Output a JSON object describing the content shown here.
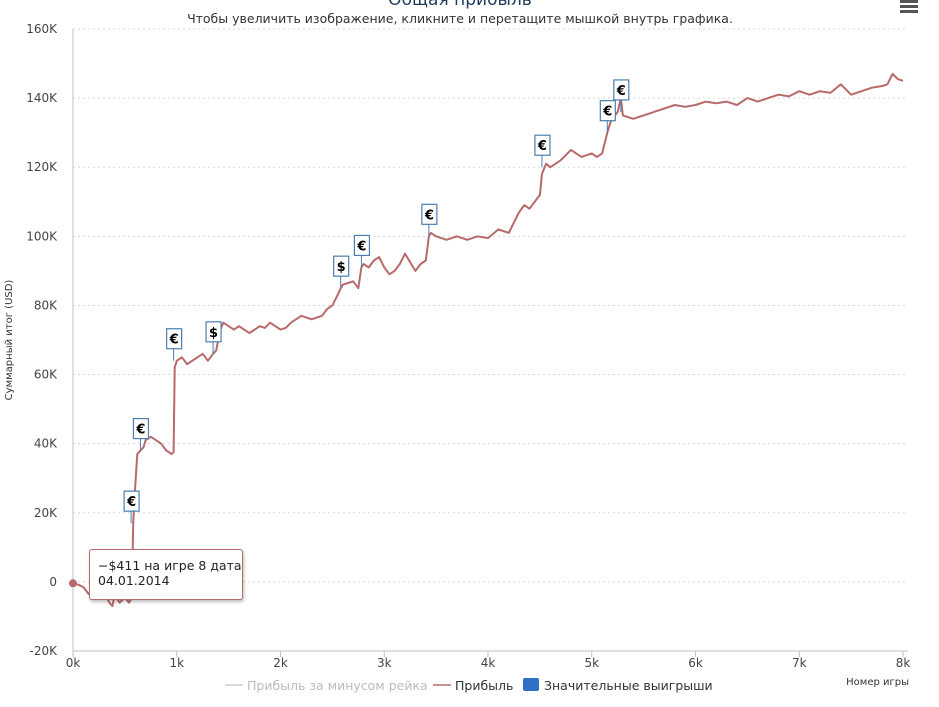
{
  "chart_data": {
    "type": "line",
    "title": "Общая прибыль",
    "subtitle": "Чтобы увеличить изображение, кликните и перетащите мышкой внутрь графика.",
    "xlabel": "Номер игры",
    "ylabel": "Суммарный итог (USD)",
    "xlim": [
      0,
      8000
    ],
    "ylim": [
      -20000,
      160000
    ],
    "x_ticks": [
      "0k",
      "1k",
      "2k",
      "3k",
      "4k",
      "5k",
      "6k",
      "7k",
      "8k"
    ],
    "y_ticks": [
      "-20K",
      "0",
      "20K",
      "40K",
      "60K",
      "80K",
      "100K",
      "120K",
      "140K",
      "160K"
    ],
    "grid": true,
    "legend_position": "bottom",
    "series": [
      {
        "name": "Прибыль за минусом рейка",
        "color": "#cccccc",
        "visible": false,
        "x": [],
        "y": []
      },
      {
        "name": "Прибыль",
        "color": "#b86a6a",
        "x": [
          0,
          50,
          100,
          150,
          200,
          250,
          300,
          350,
          380,
          400,
          450,
          500,
          540,
          560,
          570,
          580,
          600,
          620,
          650,
          680,
          700,
          750,
          800,
          850,
          900,
          950,
          970,
          980,
          1000,
          1050,
          1100,
          1150,
          1200,
          1250,
          1300,
          1350,
          1380,
          1420,
          1450,
          1500,
          1550,
          1600,
          1700,
          1800,
          1850,
          1900,
          2000,
          2050,
          2100,
          2200,
          2300,
          2400,
          2450,
          2500,
          2550,
          2580,
          2600,
          2650,
          2700,
          2750,
          2780,
          2800,
          2850,
          2900,
          2950,
          3000,
          3050,
          3100,
          3150,
          3200,
          3300,
          3350,
          3400,
          3430,
          3450,
          3500,
          3600,
          3700,
          3800,
          3900,
          4000,
          4100,
          4200,
          4250,
          4300,
          4350,
          4400,
          4450,
          4500,
          4520,
          4560,
          4600,
          4700,
          4800,
          4850,
          4900,
          5000,
          5050,
          5100,
          5150,
          5180,
          5200,
          5250,
          5280,
          5300,
          5400,
          5500,
          5600,
          5700,
          5800,
          5900,
          6000,
          6100,
          6200,
          6300,
          6400,
          6500,
          6600,
          6700,
          6800,
          6900,
          7000,
          7100,
          7200,
          7300,
          7400,
          7500,
          7600,
          7700,
          7800,
          7850,
          7900,
          7950,
          8000
        ],
        "y": [
          -411,
          -800,
          -1500,
          -3500,
          -2500,
          -4000,
          -3000,
          -6000,
          -7000,
          -4000,
          -6000,
          -4500,
          -6000,
          -5000,
          -1000,
          17000,
          28000,
          37000,
          38000,
          39000,
          41000,
          42000,
          41000,
          40000,
          38000,
          37000,
          37500,
          62000,
          64000,
          65000,
          63000,
          64000,
          65000,
          66000,
          64000,
          66000,
          67000,
          73000,
          75000,
          74000,
          73000,
          74000,
          72000,
          74000,
          73500,
          75000,
          73000,
          73500,
          75000,
          77000,
          76000,
          77000,
          79000,
          80000,
          83000,
          85000,
          86000,
          86500,
          87000,
          85000,
          91000,
          92000,
          91000,
          93000,
          94000,
          91000,
          89000,
          90000,
          92000,
          95000,
          90000,
          92000,
          93000,
          100000,
          101000,
          100000,
          99000,
          100000,
          99000,
          100000,
          99500,
          102000,
          101000,
          104000,
          107000,
          109000,
          108000,
          110000,
          112000,
          118000,
          121000,
          120000,
          122000,
          125000,
          124000,
          123000,
          124000,
          123000,
          124000,
          130000,
          133000,
          134000,
          136000,
          140000,
          135000,
          134000,
          135000,
          136000,
          137000,
          138000,
          137500,
          138000,
          139000,
          138500,
          139000,
          138000,
          140000,
          139000,
          140000,
          141000,
          140500,
          142000,
          141000,
          142000,
          141500,
          144000,
          141000,
          142000,
          143000,
          143500,
          144000,
          147000,
          145500,
          145000
        ]
      },
      {
        "name": "Значительные выигрыши",
        "color": "#2f6fc4"
      }
    ],
    "flags": [
      {
        "x": 560,
        "y": 17000,
        "symbol": "€"
      },
      {
        "x": 650,
        "y": 38000,
        "symbol": "€"
      },
      {
        "x": 970,
        "y": 64000,
        "symbol": "€"
      },
      {
        "x": 1350,
        "y": 66000,
        "symbol": "$"
      },
      {
        "x": 2580,
        "y": 85000,
        "symbol": "$"
      },
      {
        "x": 2780,
        "y": 91000,
        "symbol": "€"
      },
      {
        "x": 3430,
        "y": 100000,
        "symbol": "€"
      },
      {
        "x": 4520,
        "y": 120000,
        "symbol": "€"
      },
      {
        "x": 5150,
        "y": 130000,
        "symbol": "€"
      },
      {
        "x": 5280,
        "y": 136000,
        "symbol": "€"
      }
    ]
  },
  "tooltip": {
    "line1": "−$411 на игре 8 дата",
    "line2": "04.01.2014",
    "point_x": 0,
    "point_y": -411
  },
  "menu_icon": "hamburger-menu-icon"
}
